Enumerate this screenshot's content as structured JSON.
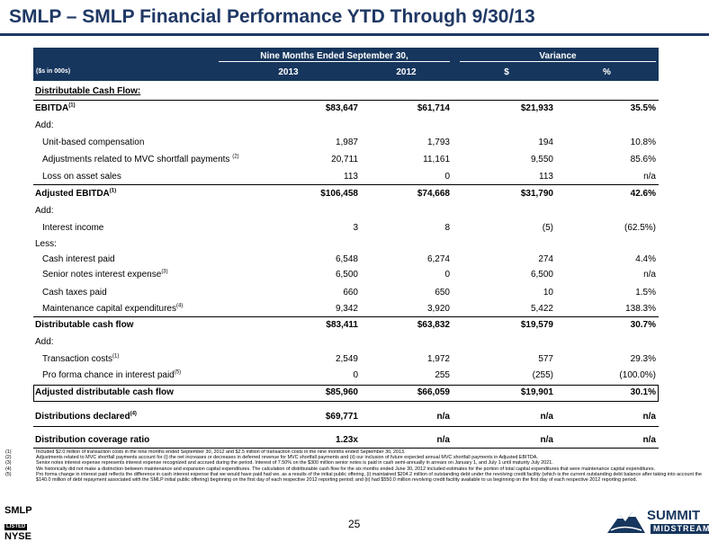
{
  "title": "SMLP – SMLP Financial Performance YTD Through 9/30/13",
  "header": {
    "period": "Nine Months Ended September 30,",
    "variance": "Variance",
    "units": "($s in 000s)",
    "y2013": "2013",
    "y2012": "2012",
    "dollar": "$",
    "pct": "%"
  },
  "rows": {
    "r0": {
      "label": "Distributable Cash Flow:"
    },
    "r1": {
      "label": "EBITDA",
      "sup": "(1)",
      "v2013": "$83,647",
      "v2012": "$61,714",
      "var": "$21,933",
      "pct": "35.5%"
    },
    "r2": {
      "label": "Add:"
    },
    "r3": {
      "label": "Unit-based compensation",
      "v2013": "1,987",
      "v2012": "1,793",
      "var": "194",
      "pct": "10.8%"
    },
    "r4": {
      "label": "Adjustments related to MVC shortfall payments",
      "sup": "(2)",
      "v2013": "20,711",
      "v2012": "11,161",
      "var": "9,550",
      "pct": "85.6%"
    },
    "r5": {
      "label": "Loss on asset sales",
      "v2013": "113",
      "v2012": "0",
      "var": "113",
      "pct": "n/a"
    },
    "r6": {
      "label": "Adjusted EBITDA",
      "sup": "(1)",
      "v2013": "$106,458",
      "v2012": "$74,668",
      "var": "$31,790",
      "pct": "42.6%"
    },
    "r7": {
      "label": "Add:"
    },
    "r8": {
      "label": "Interest income",
      "v2013": "3",
      "v2012": "8",
      "var": "(5)",
      "pct": "(62.5%)"
    },
    "r9": {
      "label": "Less:"
    },
    "r10": {
      "label": "Cash interest paid",
      "v2013": "6,548",
      "v2012": "6,274",
      "var": "274",
      "pct": "4.4%"
    },
    "r11": {
      "label": "Senior notes interest expense",
      "sup": "(3)",
      "v2013": "6,500",
      "v2012": "0",
      "var": "6,500",
      "pct": "n/a"
    },
    "r12": {
      "label": "Cash taxes paid",
      "v2013": "660",
      "v2012": "650",
      "var": "10",
      "pct": "1.5%"
    },
    "r13": {
      "label": "Maintenance capital expenditures",
      "sup": "(4)",
      "v2013": "9,342",
      "v2012": "3,920",
      "var": "5,422",
      "pct": "138.3%"
    },
    "r14": {
      "label": "Distributable cash flow",
      "v2013": "$83,411",
      "v2012": "$63,832",
      "var": "$19,579",
      "pct": "30.7%"
    },
    "r15": {
      "label": "Add:"
    },
    "r16": {
      "label": "Transaction costs",
      "sup": "(1)",
      "v2013": "2,549",
      "v2012": "1,972",
      "var": "577",
      "pct": "29.3%"
    },
    "r17": {
      "label": "Pro forma chance in interest paid",
      "sup": "(5)",
      "v2013": "0",
      "v2012": "255",
      "var": "(255)",
      "pct": "(100.0%)"
    },
    "r18": {
      "label": "Adjusted distributable cash flow",
      "v2013": "$85,960",
      "v2012": "$66,059",
      "var": "$19,901",
      "pct": "30.1%"
    },
    "r19": {
      "label": "Distributions declared",
      "sup": "(4)",
      "v2013": "$69,771",
      "v2012": "n/a",
      "var": "n/a",
      "pct": "n/a"
    },
    "r20": {
      "label": "Distribution coverage ratio",
      "v2013": "1.23x",
      "v2012": "n/a",
      "var": "n/a",
      "pct": "n/a"
    }
  },
  "footnotes": [
    {
      "num": "(1)",
      "text": "Included $2.0 million of transaction costs in the nine months ended September 30, 2012 and $2.5 million of transaction costs in the nine months ended September 30, 2013."
    },
    {
      "num": "(2)",
      "text": "Adjustments related to MVC shortfall payments account for (i) the net increases or decreases in deferred revenue for MVC shortfall payments and (ii) our inclusion of future expected annual MVC shortfall payments in Adjusted EBITDA."
    },
    {
      "num": "(3)",
      "text": "Senior notes interest expense represents interest expense recognized and accrued during the period. Interest of 7.50% on the $300 million senior notes is paid in cash semi-annually in arrears on January 1, and July 1 until maturity July 2021."
    },
    {
      "num": "(4)",
      "text": "We historically did not make a distinction between maintenance and expansion capital expenditures. The calculation of distributable cash flow for the six months ended June 30, 2012 included estimates for the portion of total capital expenditures that were maintenance capital expenditures."
    },
    {
      "num": "(5)",
      "text": "Pro forma change in interest paid reflects the difference in cash interest expense that we would have paid had we, as a results of the initial public offering, (i) maintained $204.2 million of outstanding debt under the revolving credit facility (which is the current outstanding debt balance after taking into account the $140.0 million of debt repayment associated with the SMLP initial public offering) beginning on the first day of each respective 2012 reporting period; and (ii) had $550.0 million revolving credit facility available to us beginning on the first day of each respective 2012 reporting period."
    }
  ],
  "page_number": "25",
  "logo_left": {
    "line1": "SMLP",
    "line2": "LISTED",
    "line3": "NYSE"
  },
  "logo_right": {
    "line1": "SUMMIT",
    "line2": "MIDSTREAM"
  },
  "colors": {
    "navy": "#17365d",
    "title": "#1f3864"
  }
}
